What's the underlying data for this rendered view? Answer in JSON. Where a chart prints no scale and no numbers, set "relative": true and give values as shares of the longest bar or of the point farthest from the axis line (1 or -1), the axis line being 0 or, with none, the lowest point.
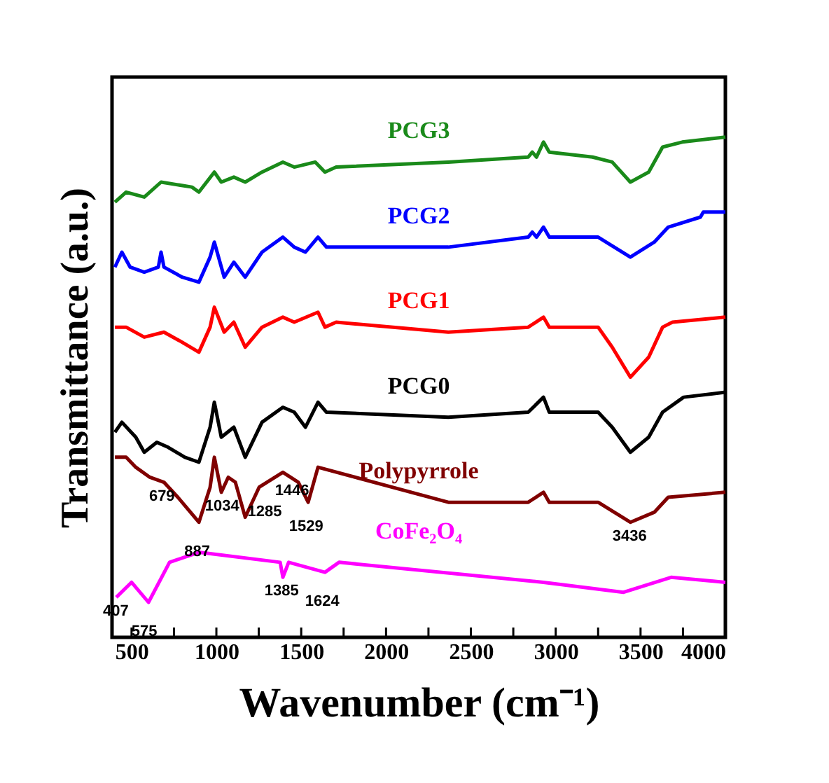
{
  "chart_data": {
    "type": "line",
    "relative": true,
    "xlabel": "Wavenumber (cm⁻¹)",
    "ylabel": "Transmittance (a.u.)",
    "xlim": [
      385,
      4000
    ],
    "xticks": [
      500,
      {
        "value": 750,
        "label": null
      },
      1000,
      {
        "value": 1250,
        "label": null
      },
      1500,
      {
        "value": 1750,
        "label": null
      },
      2000,
      {
        "value": 2250,
        "label": null
      },
      2500,
      {
        "value": 2750,
        "label": null
      },
      3000,
      {
        "value": 3250,
        "label": null
      },
      3500,
      {
        "value": 3750,
        "label": null
      },
      4000
    ],
    "grid": false,
    "legend": false,
    "marker": "none",
    "line_style": "solid",
    "series": [
      {
        "name": "PCG3",
        "color": "#1a8a1a",
        "x": [
          402,
          468,
          575,
          674,
          856,
          897,
          988,
          1029,
          1103,
          1170,
          1269,
          1392,
          1459,
          1583,
          1640,
          1706,
          2367,
          2838,
          2862,
          2887,
          2928,
          2962,
          3217,
          3333,
          3440,
          3548,
          3630,
          3746,
          4000
        ],
        "values": [
          0.87,
          0.89,
          0.88,
          0.91,
          0.9,
          0.89,
          0.93,
          0.91,
          0.92,
          0.91,
          0.93,
          0.95,
          0.94,
          0.95,
          0.93,
          0.94,
          0.95,
          0.96,
          0.97,
          0.96,
          0.99,
          0.97,
          0.96,
          0.95,
          0.91,
          0.93,
          0.98,
          0.99,
          1.0
        ]
      },
      {
        "name": "PCG2",
        "color": "#0000ff",
        "x": [
          402,
          443,
          492,
          575,
          658,
          674,
          691,
          798,
          897,
          963,
          988,
          1046,
          1103,
          1170,
          1269,
          1392,
          1459,
          1525,
          1599,
          1649,
          2367,
          2838,
          2862,
          2887,
          2928,
          2962,
          3250,
          3440,
          3581,
          3663,
          3853,
          3870,
          4000
        ],
        "values": [
          0.74,
          0.77,
          0.74,
          0.73,
          0.74,
          0.77,
          0.74,
          0.72,
          0.71,
          0.76,
          0.79,
          0.72,
          0.75,
          0.72,
          0.77,
          0.8,
          0.78,
          0.77,
          0.8,
          0.78,
          0.78,
          0.8,
          0.81,
          0.8,
          0.82,
          0.8,
          0.8,
          0.76,
          0.79,
          0.82,
          0.84,
          0.85,
          0.85
        ]
      },
      {
        "name": "PCG1",
        "color": "#ff0000",
        "x": [
          402,
          468,
          575,
          691,
          798,
          897,
          963,
          988,
          1046,
          1103,
          1170,
          1269,
          1392,
          1459,
          1599,
          1640,
          1706,
          2367,
          2838,
          2928,
          2962,
          3250,
          3333,
          3440,
          3548,
          3630,
          3688,
          4000
        ],
        "values": [
          0.62,
          0.62,
          0.6,
          0.61,
          0.59,
          0.57,
          0.62,
          0.66,
          0.61,
          0.63,
          0.58,
          0.62,
          0.64,
          0.63,
          0.65,
          0.62,
          0.63,
          0.61,
          0.62,
          0.64,
          0.62,
          0.62,
          0.58,
          0.52,
          0.56,
          0.62,
          0.63,
          0.64
        ]
      },
      {
        "name": "PCG0",
        "color": "#000000",
        "x": [
          402,
          443,
          525,
          575,
          649,
          715,
          814,
          897,
          963,
          988,
          1029,
          1103,
          1170,
          1269,
          1392,
          1459,
          1525,
          1599,
          1649,
          2367,
          2838,
          2928,
          2962,
          3250,
          3333,
          3440,
          3548,
          3630,
          3754,
          4000
        ],
        "values": [
          0.41,
          0.43,
          0.4,
          0.37,
          0.39,
          0.38,
          0.36,
          0.35,
          0.42,
          0.47,
          0.4,
          0.42,
          0.36,
          0.43,
          0.46,
          0.45,
          0.42,
          0.47,
          0.45,
          0.44,
          0.45,
          0.48,
          0.45,
          0.45,
          0.42,
          0.37,
          0.4,
          0.45,
          0.48,
          0.49
        ]
      },
      {
        "name": "Polypyrrole",
        "color": "#800000",
        "x": [
          402,
          468,
          525,
          608,
          691,
          773,
          823,
          897,
          963,
          988,
          1029,
          1070,
          1112,
          1170,
          1252,
          1392,
          1483,
          1541,
          1599,
          2367,
          2838,
          2928,
          2962,
          3250,
          3440,
          3581,
          3663,
          4000
        ],
        "values": [
          0.36,
          0.36,
          0.34,
          0.32,
          0.31,
          0.28,
          0.26,
          0.23,
          0.3,
          0.36,
          0.29,
          0.32,
          0.31,
          0.24,
          0.3,
          0.33,
          0.31,
          0.27,
          0.34,
          0.27,
          0.27,
          0.29,
          0.27,
          0.27,
          0.23,
          0.25,
          0.28,
          0.29
        ]
      },
      {
        "name": "CoFe₂O₄",
        "color": "#ff00ff",
        "x": [
          410,
          500,
          600,
          724,
          897,
          1376,
          1392,
          1426,
          1640,
          1723,
          2928,
          3400,
          3680,
          4000
        ],
        "values": [
          0.08,
          0.11,
          0.07,
          0.15,
          0.17,
          0.15,
          0.12,
          0.15,
          0.13,
          0.15,
          0.11,
          0.09,
          0.12,
          0.11
        ]
      }
    ],
    "annotations": [
      {
        "text": "679",
        "x": 679,
        "y": 0.31
      },
      {
        "text": "887",
        "x": 887,
        "y": 0.23
      },
      {
        "text": "1034",
        "x": 1034,
        "y": 0.29
      },
      {
        "text": "1285",
        "x": 1285,
        "y": 0.31
      },
      {
        "text": "1446",
        "x": 1446,
        "y": 0.32
      },
      {
        "text": "1529",
        "x": 1529,
        "y": 0.28
      },
      {
        "text": "407",
        "x": 407,
        "y": 0.08
      },
      {
        "text": "575",
        "x": 575,
        "y": 0.07
      },
      {
        "text": "1385",
        "x": 1385,
        "y": 0.12
      },
      {
        "text": "1624",
        "x": 1624,
        "y": 0.13
      },
      {
        "text": "3436",
        "x": 3436,
        "y": 0.23
      }
    ]
  }
}
